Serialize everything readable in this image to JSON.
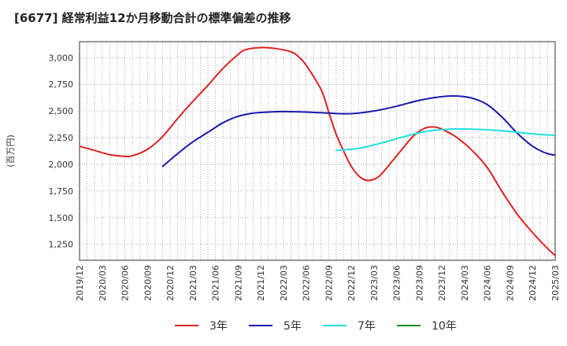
{
  "chart_data": {
    "type": "line",
    "title": "[6677]  経常利益12か月移動合計の標準偏差の推移",
    "ylabel": "(百万円)",
    "xlabel": "",
    "ylim": [
      1100,
      3150
    ],
    "y_ticks": [
      1250,
      1500,
      1750,
      2000,
      2250,
      2500,
      2750,
      3000
    ],
    "y_tick_labels": [
      "1,250",
      "1,500",
      "1,750",
      "2,000",
      "2,250",
      "2,500",
      "2,750",
      "3,000"
    ],
    "x_range": [
      "2019-12",
      "2025-03"
    ],
    "x_tick_labels": [
      "2019/12",
      "2020/03",
      "2020/06",
      "2020/09",
      "2020/12",
      "2021/03",
      "2021/06",
      "2021/09",
      "2021/12",
      "2022/03",
      "2022/06",
      "2022/09",
      "2022/12",
      "2023/03",
      "2023/06",
      "2023/09",
      "2023/12",
      "2024/03",
      "2024/06",
      "2024/09",
      "2024/12",
      "2025/03"
    ],
    "grid": true,
    "legend_position": "bottom",
    "series": [
      {
        "name": "3年",
        "color": "#dd2222",
        "points": [
          [
            "2019-12",
            2170
          ],
          [
            "2020-02",
            2130
          ],
          [
            "2020-04",
            2090
          ],
          [
            "2020-06",
            2075
          ],
          [
            "2020-07",
            2080
          ],
          [
            "2020-09",
            2140
          ],
          [
            "2020-11",
            2260
          ],
          [
            "2021-01",
            2430
          ],
          [
            "2021-03",
            2590
          ],
          [
            "2021-05",
            2740
          ],
          [
            "2021-07",
            2900
          ],
          [
            "2021-09",
            3030
          ],
          [
            "2021-10",
            3075
          ],
          [
            "2021-12",
            3095
          ],
          [
            "2022-02",
            3085
          ],
          [
            "2022-04",
            3055
          ],
          [
            "2022-05",
            3010
          ],
          [
            "2022-06",
            2930
          ],
          [
            "2022-08",
            2700
          ],
          [
            "2022-09",
            2490
          ],
          [
            "2022-10",
            2280
          ],
          [
            "2022-11",
            2120
          ],
          [
            "2022-12",
            1980
          ],
          [
            "2023-01",
            1890
          ],
          [
            "2023-02",
            1850
          ],
          [
            "2023-03",
            1860
          ],
          [
            "2023-04",
            1910
          ],
          [
            "2023-06",
            2080
          ],
          [
            "2023-08",
            2250
          ],
          [
            "2023-09",
            2310
          ],
          [
            "2023-10",
            2345
          ],
          [
            "2023-11",
            2350
          ],
          [
            "2023-12",
            2330
          ],
          [
            "2024-02",
            2250
          ],
          [
            "2024-04",
            2130
          ],
          [
            "2024-06",
            1970
          ],
          [
            "2024-08",
            1740
          ],
          [
            "2024-10",
            1530
          ],
          [
            "2024-12",
            1360
          ],
          [
            "2025-02",
            1210
          ],
          [
            "2025-04",
            1080
          ]
        ]
      },
      {
        "name": "5年",
        "color": "#1a1aaa",
        "points": [
          [
            "2020-11",
            1980
          ],
          [
            "2021-01",
            2100
          ],
          [
            "2021-03",
            2210
          ],
          [
            "2021-05",
            2300
          ],
          [
            "2021-07",
            2390
          ],
          [
            "2021-09",
            2450
          ],
          [
            "2021-11",
            2480
          ],
          [
            "2022-01",
            2490
          ],
          [
            "2022-03",
            2495
          ],
          [
            "2022-06",
            2490
          ],
          [
            "2022-09",
            2480
          ],
          [
            "2022-12",
            2475
          ],
          [
            "2023-03",
            2500
          ],
          [
            "2023-06",
            2545
          ],
          [
            "2023-09",
            2600
          ],
          [
            "2023-12",
            2635
          ],
          [
            "2024-02",
            2640
          ],
          [
            "2024-04",
            2620
          ],
          [
            "2024-06",
            2560
          ],
          [
            "2024-08",
            2440
          ],
          [
            "2024-10",
            2290
          ],
          [
            "2024-12",
            2170
          ],
          [
            "2025-02",
            2100
          ],
          [
            "2025-04",
            2080
          ]
        ]
      },
      {
        "name": "7年",
        "color": "#22dddd",
        "points": [
          [
            "2022-10",
            2130
          ],
          [
            "2023-01",
            2150
          ],
          [
            "2023-04",
            2200
          ],
          [
            "2023-07",
            2260
          ],
          [
            "2023-10",
            2310
          ],
          [
            "2024-01",
            2330
          ],
          [
            "2024-04",
            2330
          ],
          [
            "2024-07",
            2320
          ],
          [
            "2024-10",
            2300
          ],
          [
            "2025-01",
            2280
          ],
          [
            "2025-04",
            2270
          ]
        ]
      },
      {
        "name": "10年",
        "color": "#228822",
        "points": []
      }
    ]
  }
}
